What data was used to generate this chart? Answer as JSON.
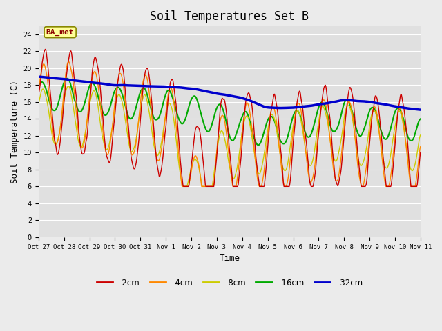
{
  "title": "Soil Temperatures Set B",
  "xlabel": "Time",
  "ylabel": "Soil Temperature (C)",
  "annotation": "BA_met",
  "ylim": [
    0,
    25
  ],
  "yticks": [
    0,
    2,
    4,
    6,
    8,
    10,
    12,
    14,
    16,
    18,
    20,
    22,
    24
  ],
  "xtick_labels": [
    "Oct 27",
    "Oct 28",
    "Oct 29",
    "Oct 30",
    "Oct 31",
    "Nov 1",
    "Nov 2",
    "Nov 3",
    "Nov 4",
    "Nov 5",
    "Nov 6",
    "Nov 7",
    "Nov 8",
    "Nov 9",
    "Nov 10",
    "Nov 11"
  ],
  "colors": {
    "-2cm": "#cc0000",
    "-4cm": "#ff8800",
    "-8cm": "#cccc00",
    "-16cm": "#00aa00",
    "-32cm": "#0000cc"
  },
  "legend_labels": [
    "-2cm",
    "-4cm",
    "-8cm",
    "-16cm",
    "-32cm"
  ],
  "background_color": "#ebebeb",
  "plot_bg_color": "#e0e0e0",
  "title_fontsize": 12,
  "axis_fontsize": 9
}
